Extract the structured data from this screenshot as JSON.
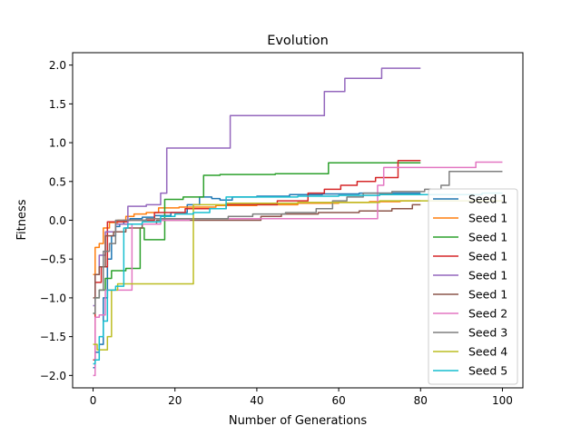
{
  "chart_data": {
    "type": "line",
    "title": "Evolution",
    "xlabel": "Number of Generations",
    "ylabel": "Fitness",
    "xlim": [
      -5,
      105
    ],
    "ylim": [
      -2.16,
      2.16
    ],
    "xticks": [
      0,
      20,
      40,
      60,
      80,
      100
    ],
    "yticks": [
      -2.0,
      -1.5,
      -1.0,
      -0.5,
      0.0,
      0.5,
      1.0,
      1.5,
      2.0
    ],
    "xtick_labels": [
      "0",
      "20",
      "40",
      "60",
      "80",
      "100"
    ],
    "ytick_labels": [
      "−2.0",
      "−1.5",
      "−1.0",
      "−0.5",
      "0.0",
      "0.5",
      "1.0",
      "1.5",
      "2.0"
    ],
    "grid": false,
    "legend_position": "lower-right",
    "series": [
      {
        "name": "Seed 1",
        "color": "#1f77b4",
        "step": true,
        "points": [
          [
            0,
            -1.9
          ],
          [
            1,
            -1.7
          ],
          [
            2,
            -1.6
          ],
          [
            3,
            -1.0
          ],
          [
            4,
            -0.5
          ],
          [
            5,
            -0.2
          ],
          [
            6,
            -0.08
          ],
          [
            7,
            -0.05
          ],
          [
            8,
            0.0
          ],
          [
            10,
            0.02
          ],
          [
            14,
            0.04
          ],
          [
            16,
            0.06
          ],
          [
            22,
            0.1
          ],
          [
            24,
            0.2
          ],
          [
            28,
            0.3
          ],
          [
            30,
            0.28
          ],
          [
            32,
            0.26
          ],
          [
            36,
            0.3
          ],
          [
            44,
            0.31
          ],
          [
            52,
            0.33
          ],
          [
            60,
            0.34
          ],
          [
            70,
            0.35
          ],
          [
            80,
            0.35
          ]
        ]
      },
      {
        "name": "Seed 1",
        "color": "#ff7f0e",
        "step": true,
        "points": [
          [
            0,
            -0.7
          ],
          [
            1,
            -0.35
          ],
          [
            2,
            -0.3
          ],
          [
            3,
            -0.1
          ],
          [
            5,
            -0.03
          ],
          [
            7,
            0.0
          ],
          [
            9,
            0.05
          ],
          [
            11,
            0.08
          ],
          [
            15,
            0.1
          ],
          [
            17,
            0.16
          ],
          [
            25,
            0.17
          ],
          [
            35,
            0.19
          ],
          [
            45,
            0.2
          ],
          [
            55,
            0.22
          ],
          [
            65,
            0.23
          ],
          [
            70,
            0.24
          ],
          [
            80,
            0.25
          ]
        ]
      },
      {
        "name": "Seed 1",
        "color": "#2ca02c",
        "step": true,
        "points": [
          [
            0,
            -1.2
          ],
          [
            1,
            -1.0
          ],
          [
            2,
            -0.9
          ],
          [
            4,
            -0.75
          ],
          [
            5,
            -0.65
          ],
          [
            11,
            -0.62
          ],
          [
            12,
            -0.1
          ],
          [
            13,
            -0.25
          ],
          [
            17,
            -0.25
          ],
          [
            18,
            0.27
          ],
          [
            26,
            0.3
          ],
          [
            28,
            0.58
          ],
          [
            34,
            0.59
          ],
          [
            55,
            0.6
          ],
          [
            60,
            0.74
          ],
          [
            80,
            0.74
          ]
        ]
      },
      {
        "name": "Seed 1",
        "color": "#d62728",
        "step": true,
        "points": [
          [
            0,
            -1.8
          ],
          [
            1,
            -0.8
          ],
          [
            3,
            -0.6
          ],
          [
            4,
            -0.02
          ],
          [
            7,
            -0.02
          ],
          [
            10,
            0.0
          ],
          [
            20,
            0.1
          ],
          [
            25,
            0.15
          ],
          [
            40,
            0.2
          ],
          [
            50,
            0.25
          ],
          [
            55,
            0.35
          ],
          [
            58,
            0.4
          ],
          [
            63,
            0.45
          ],
          [
            66,
            0.5
          ],
          [
            72,
            0.55
          ],
          [
            77,
            0.77
          ],
          [
            80,
            0.77
          ]
        ]
      },
      {
        "name": "Seed 1",
        "color": "#9467bd",
        "step": true,
        "points": [
          [
            0,
            -1.1
          ],
          [
            1,
            -0.7
          ],
          [
            2,
            -0.45
          ],
          [
            4,
            -0.15
          ],
          [
            7,
            -0.05
          ],
          [
            10,
            0.18
          ],
          [
            16,
            0.2
          ],
          [
            17,
            0.35
          ],
          [
            19,
            0.93
          ],
          [
            33,
            0.93
          ],
          [
            34,
            1.35
          ],
          [
            48,
            1.35
          ],
          [
            56,
            1.35
          ],
          [
            57,
            1.66
          ],
          [
            61,
            1.66
          ],
          [
            62,
            1.83
          ],
          [
            70,
            1.83
          ],
          [
            71,
            1.96
          ],
          [
            80,
            1.96
          ]
        ]
      },
      {
        "name": "Seed 1",
        "color": "#8c564b",
        "step": true,
        "points": [
          [
            0,
            -1.0
          ],
          [
            1,
            -0.7
          ],
          [
            2,
            -0.6
          ],
          [
            4,
            -0.2
          ],
          [
            6,
            -0.15
          ],
          [
            10,
            -0.1
          ],
          [
            14,
            -0.05
          ],
          [
            17,
            0.0
          ],
          [
            40,
            0.0
          ],
          [
            42,
            0.05
          ],
          [
            50,
            0.08
          ],
          [
            60,
            0.1
          ],
          [
            70,
            0.12
          ],
          [
            76,
            0.15
          ],
          [
            80,
            0.2
          ]
        ]
      },
      {
        "name": "Seed 2",
        "color": "#e377c2",
        "step": true,
        "points": [
          [
            0,
            -2.0
          ],
          [
            1,
            -1.25
          ],
          [
            2,
            -1.22
          ],
          [
            4,
            -0.9
          ],
          [
            9,
            -0.9
          ],
          [
            10,
            -0.05
          ],
          [
            16,
            -0.05
          ],
          [
            17,
            0.0
          ],
          [
            30,
            0.02
          ],
          [
            50,
            0.02
          ],
          [
            69,
            0.02
          ],
          [
            70,
            0.45
          ],
          [
            72,
            0.68
          ],
          [
            90,
            0.68
          ],
          [
            97,
            0.75
          ],
          [
            100,
            0.75
          ]
        ]
      },
      {
        "name": "Seed 3",
        "color": "#7f7f7f",
        "step": true,
        "points": [
          [
            0,
            -1.2
          ],
          [
            1,
            -1.0
          ],
          [
            2,
            -0.9
          ],
          [
            3,
            -0.4
          ],
          [
            5,
            -0.3
          ],
          [
            6,
            0.0
          ],
          [
            20,
            0.02
          ],
          [
            30,
            0.02
          ],
          [
            36,
            0.05
          ],
          [
            42,
            0.08
          ],
          [
            52,
            0.1
          ],
          [
            57,
            0.15
          ],
          [
            60,
            0.25
          ],
          [
            64,
            0.3
          ],
          [
            68,
            0.35
          ],
          [
            78,
            0.37
          ],
          [
            84,
            0.4
          ],
          [
            86,
            0.45
          ],
          [
            88,
            0.63
          ],
          [
            100,
            0.63
          ]
        ]
      },
      {
        "name": "Seed 4",
        "color": "#bcbd22",
        "step": true,
        "points": [
          [
            0,
            -1.6
          ],
          [
            2,
            -1.67
          ],
          [
            3,
            -1.67
          ],
          [
            4,
            -1.5
          ],
          [
            5,
            -0.9
          ],
          [
            7,
            -0.82
          ],
          [
            24,
            -0.82
          ],
          [
            25,
            0.2
          ],
          [
            40,
            0.22
          ],
          [
            60,
            0.23
          ],
          [
            80,
            0.25
          ],
          [
            100,
            0.25
          ]
        ]
      },
      {
        "name": "Seed 5",
        "color": "#17becf",
        "step": true,
        "points": [
          [
            0,
            -1.85
          ],
          [
            1,
            -1.8
          ],
          [
            2,
            -1.5
          ],
          [
            3,
            -1.3
          ],
          [
            4,
            -0.9
          ],
          [
            7,
            -0.85
          ],
          [
            8,
            -0.1
          ],
          [
            9,
            -0.05
          ],
          [
            15,
            -0.02
          ],
          [
            18,
            0.05
          ],
          [
            22,
            0.08
          ],
          [
            27,
            0.1
          ],
          [
            30,
            0.15
          ],
          [
            35,
            0.3
          ],
          [
            45,
            0.3
          ],
          [
            55,
            0.31
          ],
          [
            65,
            0.32
          ],
          [
            75,
            0.33
          ],
          [
            90,
            0.33
          ],
          [
            100,
            0.35
          ]
        ]
      }
    ]
  }
}
